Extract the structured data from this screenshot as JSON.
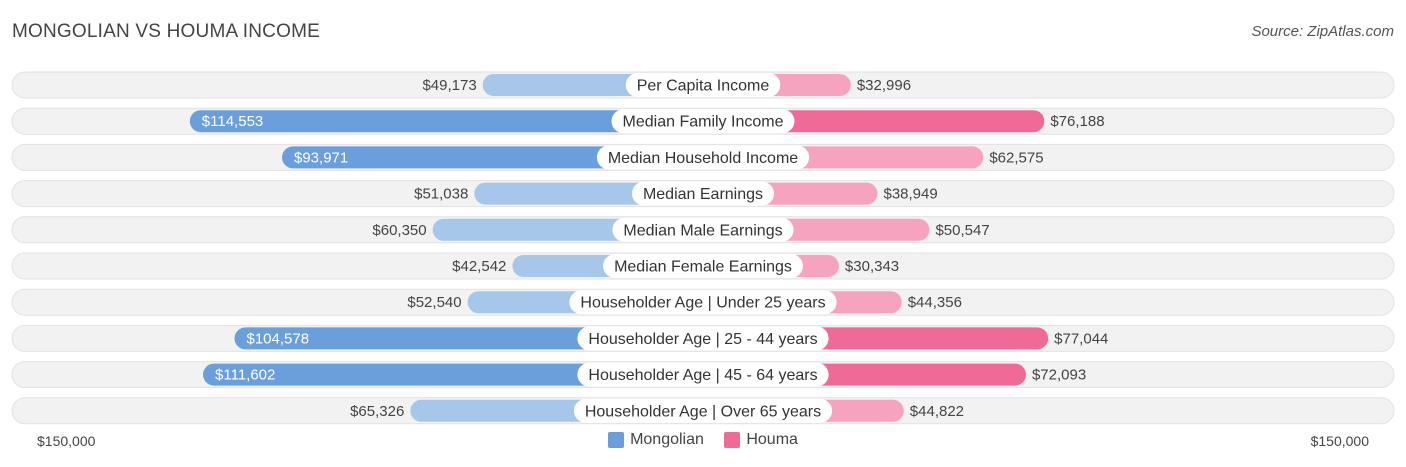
{
  "header": {
    "title": "MONGOLIAN VS HOUMA INCOME",
    "source": "Source: ZipAtlas.com"
  },
  "footer": {
    "left_axis_label": "$150,000",
    "right_axis_label": "$150,000"
  },
  "legend": {
    "series_a": "Mongolian",
    "series_b": "Houma"
  },
  "colors": {
    "mongolian_strong": "#6a9fdb",
    "mongolian_light": "#a6c6ea",
    "houma_strong": "#f06a97",
    "houma_light": "#f6a3bf",
    "track": "#f2f2f2"
  },
  "chart_data": {
    "type": "bar",
    "orientation": "horizontal-diverging",
    "xlim": [
      -150000,
      150000
    ],
    "categories": [
      "Per Capita Income",
      "Median Family Income",
      "Median Household Income",
      "Median Earnings",
      "Median Male Earnings",
      "Median Female Earnings",
      "Householder Age | Under 25 years",
      "Householder Age | 25 - 44 years",
      "Householder Age | 45 - 64 years",
      "Householder Age | Over 65 years"
    ],
    "series": [
      {
        "name": "Mongolian",
        "values": [
          49173,
          114553,
          93971,
          51038,
          60350,
          42542,
          52540,
          104578,
          111602,
          65326
        ],
        "labels": [
          "$49,173",
          "$114,553",
          "$93,971",
          "$51,038",
          "$60,350",
          "$42,542",
          "$52,540",
          "$104,578",
          "$111,602",
          "$65,326"
        ]
      },
      {
        "name": "Houma",
        "values": [
          32996,
          76188,
          62575,
          38949,
          50547,
          30343,
          44356,
          77044,
          72093,
          44822
        ],
        "labels": [
          "$32,996",
          "$76,188",
          "$62,575",
          "$38,949",
          "$50,547",
          "$30,343",
          "$44,356",
          "$77,044",
          "$72,093",
          "$44,822"
        ]
      }
    ]
  }
}
